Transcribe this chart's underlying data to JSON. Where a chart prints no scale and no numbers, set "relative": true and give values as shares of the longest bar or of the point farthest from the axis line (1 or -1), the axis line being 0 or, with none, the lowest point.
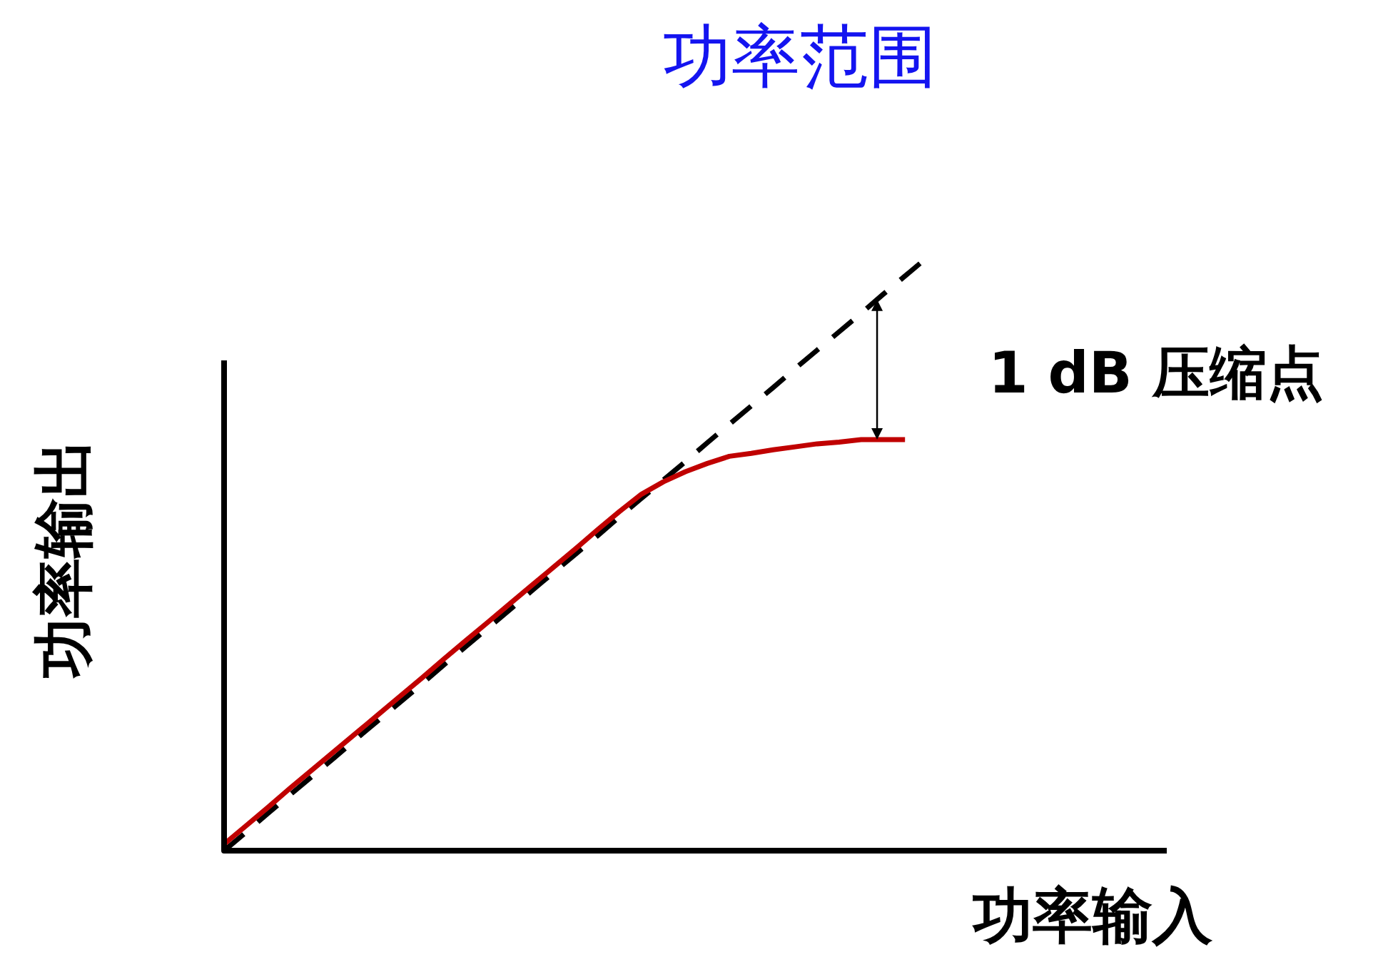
{
  "chart_data": {
    "type": "line",
    "relative": true,
    "title": "功率范围",
    "xlabel": "功率输入",
    "ylabel": "功率输出",
    "annotations": [
      "1 dB 压缩点"
    ],
    "categories": [
      null,
      null,
      null,
      null,
      null,
      null,
      null,
      null,
      null,
      null,
      null,
      null,
      null,
      null,
      null,
      null,
      null,
      null,
      null,
      null,
      null,
      null,
      null,
      null,
      null,
      null,
      null,
      null,
      null,
      null,
      null,
      null,
      null
    ],
    "series": [
      {
        "color": "#000000",
        "line_style": "dashed",
        "values": [
          0,
          0.031,
          0.063,
          0.094,
          0.125,
          0.156,
          0.188,
          0.219,
          0.25,
          0.281,
          0.313,
          0.344,
          0.375,
          0.406,
          0.438,
          0.469,
          0.5,
          0.531,
          0.563,
          0.594,
          0.625,
          0.656,
          0.688,
          0.719,
          0.75,
          0.781,
          0.813,
          0.844,
          0.875,
          0.906,
          0.938,
          0.969,
          1
        ]
      },
      {
        "color": "#c00000",
        "line_style": "solid",
        "values": [
          0.011,
          0.042,
          0.073,
          0.105,
          0.136,
          0.167,
          0.198,
          0.229,
          0.26,
          0.291,
          0.323,
          0.354,
          0.385,
          0.416,
          0.447,
          0.478,
          0.509,
          0.541,
          0.572,
          0.601,
          0.622,
          0.639,
          0.653,
          0.665,
          0.67,
          0.676,
          0.681,
          0.686,
          0.689,
          0.693,
          0.693,
          0.693,
          null
        ]
      }
    ]
  }
}
